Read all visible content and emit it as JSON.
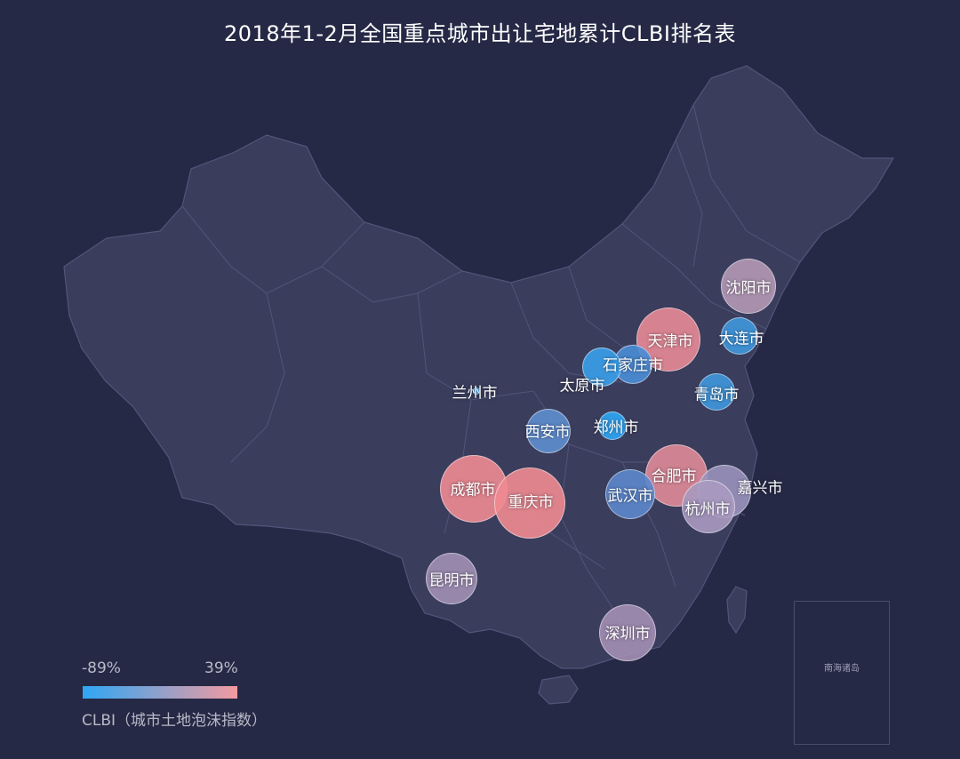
{
  "title": "2018年1-2月全国重点城市出让宅地累计CLBI排名表",
  "legend": {
    "min_label": "-89%",
    "max_label": "39%",
    "caption": "CLBI（城市土地泡沫指数）",
    "color_low": "#2ea7f5",
    "color_high": "#f49aa0"
  },
  "inset_label": "南海诸岛",
  "colors": {
    "background": "#262945",
    "land": "#3a3d5c",
    "land_border": "#52557a"
  },
  "cities": [
    {
      "name": "沈阳市",
      "color": "#b49ab6"
    },
    {
      "name": "天津市",
      "color": "#e88a96"
    },
    {
      "name": "大连市",
      "color": "#3f97dd"
    },
    {
      "name": "石家庄市",
      "color": "#4a8dd6"
    },
    {
      "name": "太原市",
      "color": "#3aa0ea"
    },
    {
      "name": "青岛市",
      "color": "#3f97dd"
    },
    {
      "name": "兰州市",
      "color": "#2ea7f5"
    },
    {
      "name": "西安市",
      "color": "#5f8fd0"
    },
    {
      "name": "郑州市",
      "color": "#2ea7f5"
    },
    {
      "name": "合肥市",
      "color": "#e08a98"
    },
    {
      "name": "嘉兴市",
      "color": "#9a93bd"
    },
    {
      "name": "成都市",
      "color": "#ef8b94"
    },
    {
      "name": "重庆市",
      "color": "#f08a92"
    },
    {
      "name": "武汉市",
      "color": "#5d88cc"
    },
    {
      "name": "杭州市",
      "color": "#a99ac0"
    },
    {
      "name": "昆明市",
      "color": "#a090b4"
    },
    {
      "name": "深圳市",
      "color": "#a48fb4"
    }
  ]
}
